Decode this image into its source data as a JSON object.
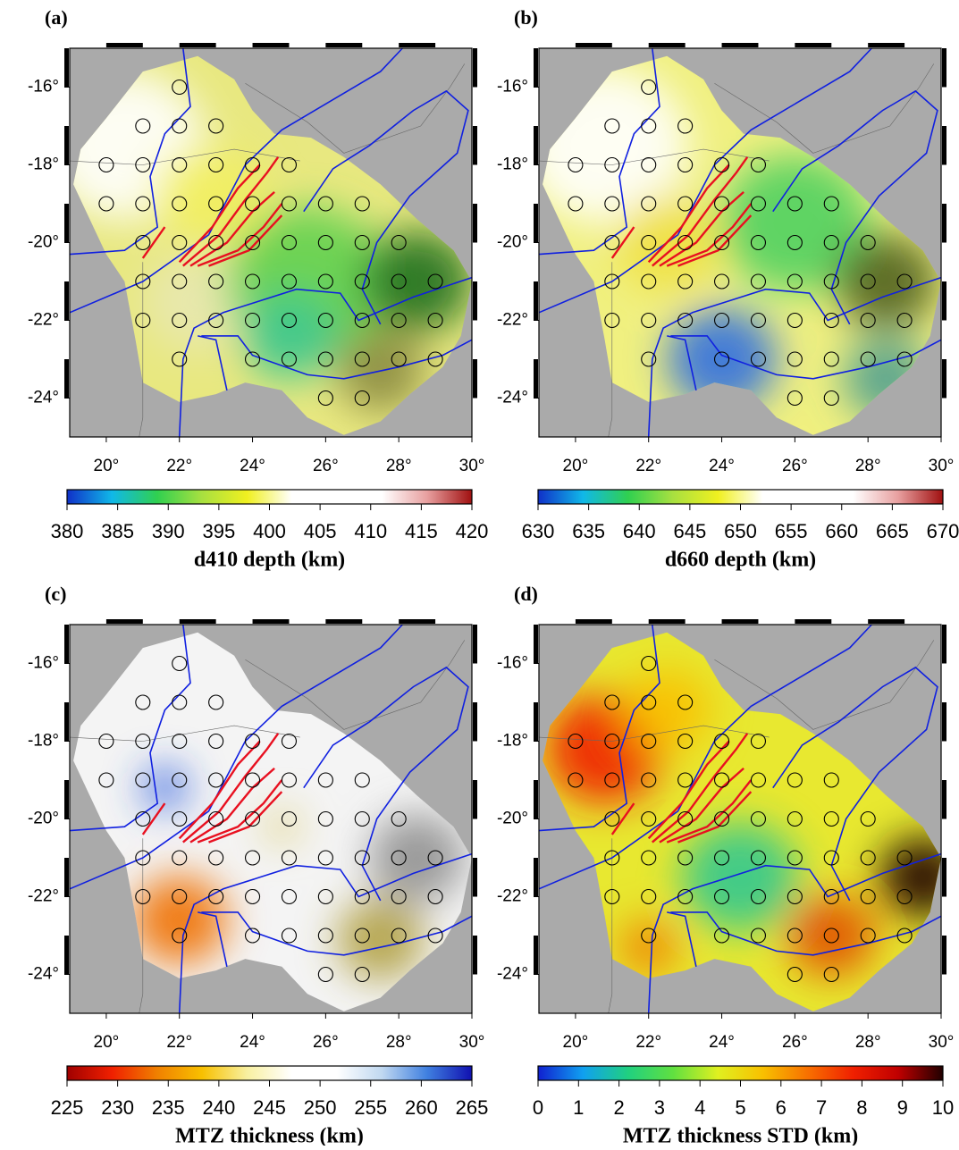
{
  "stations": {
    "x": [
      22,
      21,
      22,
      23,
      20,
      21,
      22,
      23,
      24,
      25,
      20,
      21,
      22,
      23,
      24,
      25,
      26,
      27,
      21,
      22,
      23,
      24,
      25,
      26,
      27,
      28,
      21,
      22,
      23,
      24,
      25,
      26,
      27,
      28,
      29,
      21,
      22,
      23,
      24,
      25,
      26,
      27,
      28,
      29,
      22,
      24,
      25,
      26,
      27,
      28,
      29,
      26,
      27
    ],
    "y": [
      -16,
      -17,
      -17,
      -17,
      -18,
      -18,
      -18,
      -18,
      -18,
      -18,
      -19,
      -19,
      -19,
      -19,
      -19,
      -19,
      -19,
      -19,
      -20,
      -20,
      -20,
      -20,
      -20,
      -20,
      -20,
      -20,
      -21,
      -21,
      -21,
      -21,
      -21,
      -21,
      -21,
      -21,
      -21,
      -22,
      -22,
      -22,
      -22,
      -22,
      -22,
      -22,
      -22,
      -22,
      -23,
      -23,
      -23,
      -23,
      -23,
      -23,
      -23,
      -24,
      -24
    ]
  },
  "chart_data": [
    {
      "type": "map",
      "panel_label": "(a)",
      "xlim": [
        19,
        30
      ],
      "ylim": [
        -25,
        -15
      ],
      "xticks": [
        {
          "value": 20,
          "label": "20°"
        },
        {
          "value": 22,
          "label": "22°"
        },
        {
          "value": 24,
          "label": "24°"
        },
        {
          "value": 26,
          "label": "26°"
        },
        {
          "value": 28,
          "label": "28°"
        },
        {
          "value": 30,
          "label": "30°"
        }
      ],
      "yticks": [
        {
          "value": -16,
          "label": "-16°"
        },
        {
          "value": -18,
          "label": "-18°"
        },
        {
          "value": -20,
          "label": "-20°"
        },
        {
          "value": -22,
          "label": "-22°"
        },
        {
          "value": -24,
          "label": "-24°"
        }
      ],
      "colorbar": {
        "label": "d410 depth (km)",
        "lim": [
          380,
          420
        ],
        "ticks": [
          380,
          385,
          390,
          395,
          400,
          405,
          410,
          415,
          420
        ],
        "colors": [
          "#1030c8",
          "#10b8e8",
          "#30d050",
          "#a8e040",
          "#f0f020",
          "#ffffff",
          "#ffffff",
          "#ffffff",
          "#e8a0a0",
          "#a01010"
        ]
      }
    },
    {
      "type": "map",
      "panel_label": "(b)",
      "xlim": [
        19,
        30
      ],
      "ylim": [
        -25,
        -15
      ],
      "xticks": [
        {
          "value": 20,
          "label": "20°"
        },
        {
          "value": 22,
          "label": "22°"
        },
        {
          "value": 24,
          "label": "24°"
        },
        {
          "value": 26,
          "label": "26°"
        },
        {
          "value": 28,
          "label": "28°"
        },
        {
          "value": 30,
          "label": "30°"
        }
      ],
      "yticks": [
        {
          "value": -16,
          "label": "-16°"
        },
        {
          "value": -18,
          "label": "-18°"
        },
        {
          "value": -20,
          "label": "-20°"
        },
        {
          "value": -22,
          "label": "-22°"
        },
        {
          "value": -24,
          "label": "-24°"
        }
      ],
      "colorbar": {
        "label": "d660 depth (km)",
        "lim": [
          630,
          670
        ],
        "ticks": [
          630,
          635,
          640,
          645,
          650,
          655,
          660,
          665,
          670
        ],
        "colors": [
          "#1030c8",
          "#10b8e8",
          "#30d050",
          "#a8e040",
          "#f0f020",
          "#ffffff",
          "#ffffff",
          "#ffffff",
          "#e8a0a0",
          "#a01010"
        ]
      }
    },
    {
      "type": "map",
      "panel_label": "(c)",
      "xlim": [
        19,
        30
      ],
      "ylim": [
        -25,
        -15
      ],
      "xticks": [
        {
          "value": 20,
          "label": "20°"
        },
        {
          "value": 22,
          "label": "22°"
        },
        {
          "value": 24,
          "label": "24°"
        },
        {
          "value": 26,
          "label": "26°"
        },
        {
          "value": 28,
          "label": "28°"
        },
        {
          "value": 30,
          "label": "30°"
        }
      ],
      "yticks": [
        {
          "value": -16,
          "label": "-16°"
        },
        {
          "value": -18,
          "label": "-18°"
        },
        {
          "value": -20,
          "label": "-20°"
        },
        {
          "value": -22,
          "label": "-22°"
        },
        {
          "value": -24,
          "label": "-24°"
        }
      ],
      "colorbar": {
        "label": "MTZ thickness (km)",
        "lim": [
          225,
          265
        ],
        "ticks": [
          225,
          230,
          235,
          240,
          245,
          250,
          255,
          260,
          265
        ],
        "colors": [
          "#a00000",
          "#f02000",
          "#f08000",
          "#f8c000",
          "#f8f0a0",
          "#ffffff",
          "#ffffff",
          "#c0d8f0",
          "#4080e0",
          "#1010b0"
        ]
      }
    },
    {
      "type": "map",
      "panel_label": "(d)",
      "xlim": [
        19,
        30
      ],
      "ylim": [
        -25,
        -15
      ],
      "xticks": [
        {
          "value": 20,
          "label": "20°"
        },
        {
          "value": 22,
          "label": "22°"
        },
        {
          "value": 24,
          "label": "24°"
        },
        {
          "value": 26,
          "label": "26°"
        },
        {
          "value": 28,
          "label": "28°"
        },
        {
          "value": 30,
          "label": "30°"
        }
      ],
      "yticks": [
        {
          "value": -16,
          "label": "-16°"
        },
        {
          "value": -18,
          "label": "-18°"
        },
        {
          "value": -20,
          "label": "-20°"
        },
        {
          "value": -22,
          "label": "-22°"
        },
        {
          "value": -24,
          "label": "-24°"
        }
      ],
      "colorbar": {
        "label": "MTZ thickness STD (km)",
        "lim": [
          0,
          10
        ],
        "ticks": [
          0,
          1,
          2,
          3,
          4,
          5,
          6,
          7,
          8,
          9,
          10
        ],
        "colors": [
          "#1020d0",
          "#10a0f0",
          "#20d080",
          "#60e040",
          "#e0f020",
          "#f8c000",
          "#f87000",
          "#f02000",
          "#c00000",
          "#200000"
        ]
      }
    }
  ]
}
